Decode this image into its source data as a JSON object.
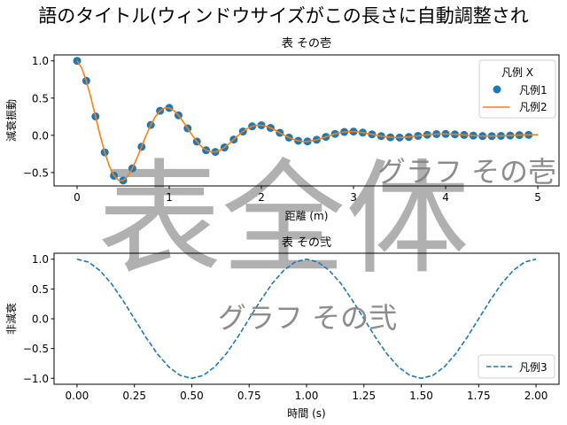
{
  "figure": {
    "suptitle": "語のタイトル(ウィンドウサイズがこの長さに自動調整され",
    "watermark": "表全体"
  },
  "chart_data": [
    {
      "type": "line",
      "title": "表 その壱",
      "xlabel": "距離 (m)",
      "ylabel": "減衰振動",
      "watermark": "グラフ その壱",
      "xlim": [
        -0.25,
        5.23
      ],
      "ylim": [
        -0.68,
        1.08
      ],
      "xticks": [
        "0",
        "1",
        "2",
        "3",
        "4",
        "5"
      ],
      "yticks": [
        "−0.5",
        "0.0",
        "0.5",
        "1.0"
      ],
      "xtick_values": [
        0,
        1,
        2,
        3,
        4,
        5
      ],
      "ytick_values": [
        -0.5,
        0,
        0.5,
        1.0
      ],
      "grid": false,
      "legend": {
        "title": "凡例 X",
        "placement": "upper right"
      },
      "series": [
        {
          "name": "凡例1",
          "kind": "scatter",
          "color": "#1f77b4",
          "x": [
            0,
            0.1,
            0.2,
            0.3,
            0.4,
            0.5,
            0.6,
            0.7,
            0.8,
            0.9,
            1.0,
            1.1,
            1.2,
            1.3,
            1.4,
            1.5,
            1.6,
            1.7,
            1.8,
            1.9,
            2.0,
            2.1,
            2.2,
            2.3,
            2.4,
            2.5,
            2.6,
            2.7,
            2.8,
            2.9,
            3.0,
            3.1,
            3.2,
            3.3,
            3.4,
            3.5,
            3.6,
            3.7,
            3.8,
            3.9,
            4.0,
            4.1,
            4.2,
            4.3,
            4.4,
            4.5,
            4.6,
            4.7,
            4.8,
            4.9
          ],
          "y": [
            1,
            0.732,
            0.253,
            -0.229,
            -0.542,
            -0.607,
            -0.444,
            -0.154,
            0.139,
            0.329,
            0.368,
            0.269,
            0.093,
            -0.084,
            -0.2,
            -0.223,
            -0.163,
            -0.057,
            0.051,
            0.121,
            0.135,
            0.099,
            0.034,
            -0.031,
            -0.073,
            -0.082,
            -0.06,
            -0.021,
            0.019,
            0.045,
            0.05,
            0.036,
            0.013,
            -0.011,
            -0.027,
            -0.03,
            -0.022,
            -0.008,
            0.007,
            0.016,
            0.018,
            0.013,
            0.005,
            -0.004,
            -0.01,
            -0.011,
            -0.008,
            -0.003,
            0.003,
            0.006
          ]
        },
        {
          "name": "凡例2",
          "kind": "line",
          "color": "#ff7f0e",
          "x": [
            0,
            0.05,
            0.1,
            0.15,
            0.2,
            0.25,
            0.3,
            0.35,
            0.4,
            0.45,
            0.5,
            0.55,
            0.6,
            0.65,
            0.7,
            0.75,
            0.8,
            0.85,
            0.9,
            0.95,
            1.0,
            1.05,
            1.1,
            1.15,
            1.2,
            1.25,
            1.3,
            1.35,
            1.4,
            1.45,
            1.5,
            1.55,
            1.6,
            1.65,
            1.7,
            1.75,
            1.8,
            1.85,
            1.9,
            1.95,
            2.0,
            2.05,
            2.1,
            2.15,
            2.2,
            2.25,
            2.3,
            2.35,
            2.4,
            2.45,
            2.5,
            2.55,
            2.6,
            2.65,
            2.7,
            2.75,
            2.8,
            2.85,
            2.9,
            2.95,
            3.0,
            3.05,
            3.1,
            3.15,
            3.2,
            3.25,
            3.3,
            3.35,
            3.4,
            3.45,
            3.5,
            3.55,
            3.6,
            3.65,
            3.7,
            3.75,
            3.8,
            3.85,
            3.9,
            3.95,
            4.0,
            4.05,
            4.1,
            4.15,
            4.2,
            4.25,
            4.3,
            4.35,
            4.4,
            4.45,
            4.5,
            4.55,
            4.6,
            4.65,
            4.7,
            4.75,
            4.8,
            4.85,
            4.9,
            4.95,
            5.0
          ],
          "y": [
            1,
            0.905,
            0.732,
            0.506,
            0.253,
            0,
            -0.229,
            -0.414,
            -0.542,
            -0.606,
            -0.607,
            -0.549,
            -0.444,
            -0.307,
            -0.154,
            0,
            0.139,
            0.251,
            0.329,
            0.368,
            0.368,
            0.333,
            0.269,
            0.186,
            0.093,
            0,
            -0.084,
            -0.152,
            -0.2,
            -0.223,
            -0.223,
            -0.202,
            -0.163,
            -0.113,
            -0.057,
            0,
            0.051,
            0.092,
            0.121,
            0.135,
            0.135,
            0.122,
            0.099,
            0.069,
            0.034,
            0,
            -0.031,
            -0.056,
            -0.073,
            -0.082,
            -0.082,
            -0.074,
            -0.06,
            -0.042,
            -0.021,
            0,
            0.019,
            0.034,
            0.045,
            0.05,
            0.05,
            0.045,
            0.036,
            0.025,
            0.013,
            0,
            -0.011,
            -0.021,
            -0.027,
            -0.03,
            -0.03,
            -0.027,
            -0.022,
            -0.015,
            -0.008,
            0,
            0.007,
            0.013,
            0.016,
            0.018,
            0.018,
            0.017,
            0.013,
            0.009,
            0.005,
            0,
            -0.004,
            -0.008,
            -0.01,
            -0.011,
            -0.011,
            -0.01,
            -0.008,
            -0.006,
            -0.003,
            0,
            0.003,
            0.005,
            0.006,
            0.007,
            0.007
          ]
        }
      ]
    },
    {
      "type": "line",
      "title": "表 その弐",
      "xlabel": "時間 (s)",
      "ylabel": "非減衰",
      "watermark": "グラフ その弐",
      "xlim": [
        -0.1,
        2.1
      ],
      "ylim": [
        -1.1,
        1.1
      ],
      "xticks": [
        "0.00",
        "0.25",
        "0.50",
        "0.75",
        "1.00",
        "1.25",
        "1.50",
        "1.75",
        "2.00"
      ],
      "yticks": [
        "−1.0",
        "−0.5",
        "0.0",
        "0.5",
        "1.0"
      ],
      "xtick_values": [
        0,
        0.25,
        0.5,
        0.75,
        1.0,
        1.25,
        1.5,
        1.75,
        2.0
      ],
      "ytick_values": [
        -1.0,
        -0.5,
        0,
        0.5,
        1.0
      ],
      "grid": false,
      "legend": {
        "placement": "lower right"
      },
      "series": [
        {
          "name": "凡例3",
          "kind": "dashed-line",
          "color": "#1f77b4",
          "x": [
            0,
            0.05,
            0.1,
            0.15,
            0.2,
            0.25,
            0.3,
            0.35,
            0.4,
            0.45,
            0.5,
            0.55,
            0.6,
            0.65,
            0.7,
            0.75,
            0.8,
            0.85,
            0.9,
            0.95,
            1.0,
            1.05,
            1.1,
            1.15,
            1.2,
            1.25,
            1.3,
            1.35,
            1.4,
            1.45,
            1.5,
            1.55,
            1.6,
            1.65,
            1.7,
            1.75,
            1.8,
            1.85,
            1.9,
            1.95,
            2.0
          ],
          "y": [
            1,
            0.951,
            0.809,
            0.588,
            0.309,
            0,
            -0.309,
            -0.588,
            -0.809,
            -0.951,
            -1,
            -0.951,
            -0.809,
            -0.588,
            -0.309,
            0,
            0.309,
            0.588,
            0.809,
            0.951,
            1,
            0.951,
            0.809,
            0.588,
            0.309,
            0,
            -0.309,
            -0.588,
            -0.809,
            -0.951,
            -1,
            -0.951,
            -0.809,
            -0.588,
            -0.309,
            0,
            0.309,
            0.588,
            0.809,
            0.951,
            1
          ]
        }
      ]
    }
  ]
}
